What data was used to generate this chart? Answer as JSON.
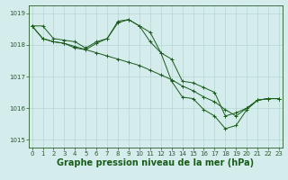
{
  "s0_y": [
    1018.6,
    1018.6,
    1018.2,
    1018.15,
    1018.1,
    1017.9,
    1018.1,
    1018.2,
    1018.75,
    1018.8,
    1018.6,
    1018.4,
    1017.75,
    1017.55,
    1016.85,
    1016.8,
    1016.65,
    1016.5,
    1015.75,
    1015.85,
    1016.0,
    1016.25,
    1016.3,
    1016.3
  ],
  "s1_y": [
    1018.6,
    1018.2,
    1018.1,
    1018.05,
    1017.9,
    1017.85,
    1017.75,
    1017.65,
    1017.55,
    1017.45,
    1017.35,
    1017.2,
    1017.05,
    1016.9,
    1016.7,
    1016.55,
    1016.35,
    1016.2,
    1015.95,
    1015.75,
    1016.0,
    1016.25,
    1016.3,
    1016.3
  ],
  "s2_y": [
    1018.6,
    1018.2,
    1018.1,
    1018.05,
    1017.95,
    1017.85,
    1018.05,
    1018.2,
    1018.7,
    1018.8,
    1018.6,
    1018.1,
    1017.75,
    1016.85,
    1016.35,
    1016.3,
    1015.95,
    1015.75,
    1015.35,
    1015.45,
    1015.95,
    1016.25,
    1016.3,
    1016.3
  ],
  "xlim": [
    -0.3,
    23.3
  ],
  "ylim": [
    1014.75,
    1019.25
  ],
  "yticks": [
    1015,
    1016,
    1017,
    1018,
    1019
  ],
  "xticks": [
    0,
    1,
    2,
    3,
    4,
    5,
    6,
    7,
    8,
    9,
    10,
    11,
    12,
    13,
    14,
    15,
    16,
    17,
    18,
    19,
    20,
    21,
    22,
    23
  ],
  "xlabel": "Graphe pression niveau de la mer (hPa)",
  "bg_color": "#d4ecec",
  "grid_color": "#b0d0d0",
  "line_color": "#1a5c1a",
  "axis_color": "#2a5a2a",
  "label_color": "#1a5c1a",
  "tick_fontsize": 5,
  "xlabel_fontsize": 7
}
